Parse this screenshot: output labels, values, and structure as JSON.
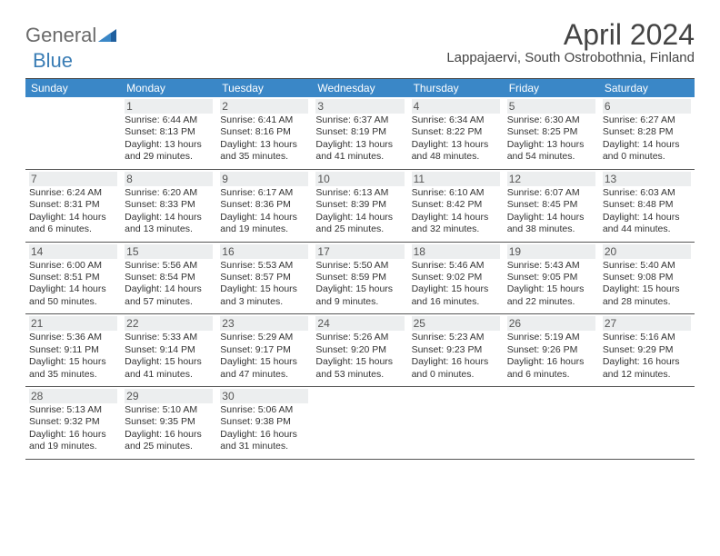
{
  "brand": {
    "general": "General",
    "blue": "Blue"
  },
  "title": "April 2024",
  "location": "Lappajaervi, South Ostrobothnia, Finland",
  "colors": {
    "header_bg": "#3a87c7",
    "header_text": "#ffffff",
    "shaded_bg": "#eceeef",
    "border": "#555555",
    "text": "#333333",
    "logo_gray": "#6a6a6a",
    "logo_blue": "#3a7db5"
  },
  "day_names": [
    "Sunday",
    "Monday",
    "Tuesday",
    "Wednesday",
    "Thursday",
    "Friday",
    "Saturday"
  ],
  "weeks": [
    [
      {
        "day": "",
        "sunrise": "",
        "sunset": "",
        "daylight": "",
        "shaded": false
      },
      {
        "day": "1",
        "sunrise": "6:44 AM",
        "sunset": "8:13 PM",
        "daylight": "13 hours and 29 minutes.",
        "shaded": true
      },
      {
        "day": "2",
        "sunrise": "6:41 AM",
        "sunset": "8:16 PM",
        "daylight": "13 hours and 35 minutes.",
        "shaded": true
      },
      {
        "day": "3",
        "sunrise": "6:37 AM",
        "sunset": "8:19 PM",
        "daylight": "13 hours and 41 minutes.",
        "shaded": true
      },
      {
        "day": "4",
        "sunrise": "6:34 AM",
        "sunset": "8:22 PM",
        "daylight": "13 hours and 48 minutes.",
        "shaded": true
      },
      {
        "day": "5",
        "sunrise": "6:30 AM",
        "sunset": "8:25 PM",
        "daylight": "13 hours and 54 minutes.",
        "shaded": true
      },
      {
        "day": "6",
        "sunrise": "6:27 AM",
        "sunset": "8:28 PM",
        "daylight": "14 hours and 0 minutes.",
        "shaded": true
      }
    ],
    [
      {
        "day": "7",
        "sunrise": "6:24 AM",
        "sunset": "8:31 PM",
        "daylight": "14 hours and 6 minutes.",
        "shaded": true
      },
      {
        "day": "8",
        "sunrise": "6:20 AM",
        "sunset": "8:33 PM",
        "daylight": "14 hours and 13 minutes.",
        "shaded": true
      },
      {
        "day": "9",
        "sunrise": "6:17 AM",
        "sunset": "8:36 PM",
        "daylight": "14 hours and 19 minutes.",
        "shaded": true
      },
      {
        "day": "10",
        "sunrise": "6:13 AM",
        "sunset": "8:39 PM",
        "daylight": "14 hours and 25 minutes.",
        "shaded": true
      },
      {
        "day": "11",
        "sunrise": "6:10 AM",
        "sunset": "8:42 PM",
        "daylight": "14 hours and 32 minutes.",
        "shaded": true
      },
      {
        "day": "12",
        "sunrise": "6:07 AM",
        "sunset": "8:45 PM",
        "daylight": "14 hours and 38 minutes.",
        "shaded": true
      },
      {
        "day": "13",
        "sunrise": "6:03 AM",
        "sunset": "8:48 PM",
        "daylight": "14 hours and 44 minutes.",
        "shaded": true
      }
    ],
    [
      {
        "day": "14",
        "sunrise": "6:00 AM",
        "sunset": "8:51 PM",
        "daylight": "14 hours and 50 minutes.",
        "shaded": true
      },
      {
        "day": "15",
        "sunrise": "5:56 AM",
        "sunset": "8:54 PM",
        "daylight": "14 hours and 57 minutes.",
        "shaded": true
      },
      {
        "day": "16",
        "sunrise": "5:53 AM",
        "sunset": "8:57 PM",
        "daylight": "15 hours and 3 minutes.",
        "shaded": true
      },
      {
        "day": "17",
        "sunrise": "5:50 AM",
        "sunset": "8:59 PM",
        "daylight": "15 hours and 9 minutes.",
        "shaded": true
      },
      {
        "day": "18",
        "sunrise": "5:46 AM",
        "sunset": "9:02 PM",
        "daylight": "15 hours and 16 minutes.",
        "shaded": true
      },
      {
        "day": "19",
        "sunrise": "5:43 AM",
        "sunset": "9:05 PM",
        "daylight": "15 hours and 22 minutes.",
        "shaded": true
      },
      {
        "day": "20",
        "sunrise": "5:40 AM",
        "sunset": "9:08 PM",
        "daylight": "15 hours and 28 minutes.",
        "shaded": true
      }
    ],
    [
      {
        "day": "21",
        "sunrise": "5:36 AM",
        "sunset": "9:11 PM",
        "daylight": "15 hours and 35 minutes.",
        "shaded": true
      },
      {
        "day": "22",
        "sunrise": "5:33 AM",
        "sunset": "9:14 PM",
        "daylight": "15 hours and 41 minutes.",
        "shaded": true
      },
      {
        "day": "23",
        "sunrise": "5:29 AM",
        "sunset": "9:17 PM",
        "daylight": "15 hours and 47 minutes.",
        "shaded": true
      },
      {
        "day": "24",
        "sunrise": "5:26 AM",
        "sunset": "9:20 PM",
        "daylight": "15 hours and 53 minutes.",
        "shaded": true
      },
      {
        "day": "25",
        "sunrise": "5:23 AM",
        "sunset": "9:23 PM",
        "daylight": "16 hours and 0 minutes.",
        "shaded": true
      },
      {
        "day": "26",
        "sunrise": "5:19 AM",
        "sunset": "9:26 PM",
        "daylight": "16 hours and 6 minutes.",
        "shaded": true
      },
      {
        "day": "27",
        "sunrise": "5:16 AM",
        "sunset": "9:29 PM",
        "daylight": "16 hours and 12 minutes.",
        "shaded": true
      }
    ],
    [
      {
        "day": "28",
        "sunrise": "5:13 AM",
        "sunset": "9:32 PM",
        "daylight": "16 hours and 19 minutes.",
        "shaded": true
      },
      {
        "day": "29",
        "sunrise": "5:10 AM",
        "sunset": "9:35 PM",
        "daylight": "16 hours and 25 minutes.",
        "shaded": true
      },
      {
        "day": "30",
        "sunrise": "5:06 AM",
        "sunset": "9:38 PM",
        "daylight": "16 hours and 31 minutes.",
        "shaded": true
      },
      {
        "day": "",
        "sunrise": "",
        "sunset": "",
        "daylight": "",
        "shaded": false
      },
      {
        "day": "",
        "sunrise": "",
        "sunset": "",
        "daylight": "",
        "shaded": false
      },
      {
        "day": "",
        "sunrise": "",
        "sunset": "",
        "daylight": "",
        "shaded": false
      },
      {
        "day": "",
        "sunrise": "",
        "sunset": "",
        "daylight": "",
        "shaded": false
      }
    ]
  ],
  "labels": {
    "sunrise": "Sunrise: ",
    "sunset": "Sunset: ",
    "daylight": "Daylight: "
  }
}
